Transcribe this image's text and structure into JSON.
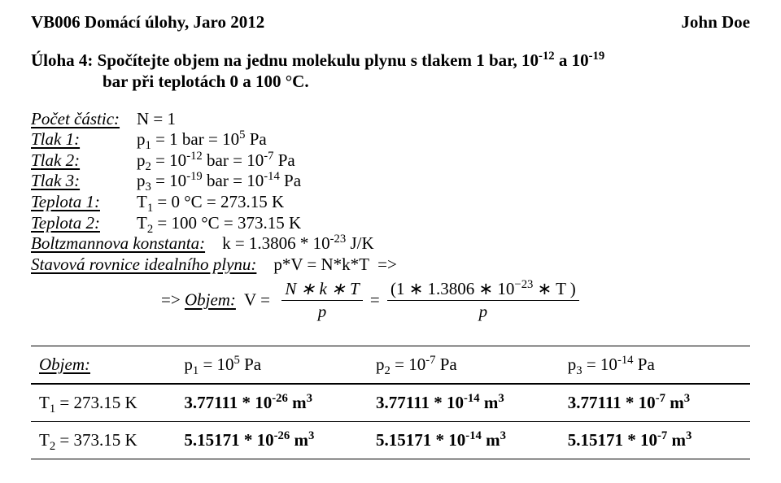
{
  "header": {
    "left": "VB006 Domácí úlohy, Jaro 2012",
    "right": "John Doe"
  },
  "task": {
    "line1": "Úloha 4: Spočítejte objem na jednu molekulu plynu s tlakem 1 bar, 10",
    "exp_a": "-12",
    "mid": " a 10",
    "exp_b": "-19",
    "line2": "bar při teplotách 0 a 100 °C."
  },
  "defs": {
    "particles_label": "Počet částic:",
    "particles_val": "N = 1",
    "tlak1_label": "Tlak 1:",
    "tlak1_val_pre": "p",
    "tlak1_val_sub": "1",
    "tlak1_val_mid": " = 1 bar = 10",
    "tlak1_val_exp": "5",
    "tlak1_val_post": " Pa",
    "tlak2_label": "Tlak 2:",
    "tlak2_val_pre": "p",
    "tlak2_val_sub": "2",
    "tlak2_val_mid1": " = 10",
    "tlak2_val_exp1": "-12",
    "tlak2_val_mid2": " bar = 10",
    "tlak2_val_exp2": "-7",
    "tlak2_val_post": " Pa",
    "tlak3_label": "Tlak 3:",
    "tlak3_val_pre": "p",
    "tlak3_val_sub": "3",
    "tlak3_val_mid1": " = 10",
    "tlak3_val_exp1": "-19",
    "tlak3_val_mid2": " bar = 10",
    "tlak3_val_exp2": "-14",
    "tlak3_val_post": " Pa",
    "tep1_label": "Teplota 1:",
    "tep1_val_pre": "T",
    "tep1_val_sub": "1",
    "tep1_val_post": " = 0 °C = 273.15 K",
    "tep2_label": "Teplota 2:",
    "tep2_val_pre": "T",
    "tep2_val_sub": "2",
    "tep2_val_post": " = 100 °C = 373.15 K",
    "boltz_label": "Boltzmannova konstanta:",
    "boltz_val_pre": "   k = 1.3806 * 10",
    "boltz_val_exp": "-23",
    "boltz_val_post": " J/K",
    "state_label": "Stavová rovnice idealního plynu:",
    "state_val": "   p*V = N*k*T  =>",
    "arrow_pre": " => ",
    "arrow_label": "Objem:",
    "arrow_mid": "  V = ",
    "frac1_num": "N ∗ k ∗ T",
    "frac1_den": "p",
    "eq": " = ",
    "frac2_num_pre": "(1 ∗ 1.3806 ∗ 10",
    "frac2_num_exp": "−23",
    "frac2_num_post": " ∗ T )",
    "frac2_den": "p"
  },
  "table": {
    "r0": {
      "c0": "Objem:",
      "c1_pre": "p",
      "c1_sub": "1",
      "c1_mid": " = 10",
      "c1_exp": "5",
      "c1_post": " Pa",
      "c2_pre": "p",
      "c2_sub": "2",
      "c2_mid": " = 10",
      "c2_exp": "-7",
      "c2_post": " Pa",
      "c3_pre": "p",
      "c3_sub": "3",
      "c3_mid": " = 10",
      "c3_exp": "-14",
      "c3_post": " Pa"
    },
    "r1": {
      "c0_pre": "T",
      "c0_sub": "1",
      "c0_post": " = 273.15 K",
      "c1_pre": "3.77111 * 10",
      "c1_exp": "-26",
      "c1_post": " m",
      "c1_exp2": "3",
      "c2_pre": "3.77111 * 10",
      "c2_exp": "-14",
      "c2_post": " m",
      "c2_exp2": "3",
      "c3_pre": "3.77111 * 10",
      "c3_exp": "-7",
      "c3_post": " m",
      "c3_exp2": "3"
    },
    "r2": {
      "c0_pre": "T",
      "c0_sub": "2",
      "c0_post": " = 373.15 K",
      "c1_pre": "5.15171 * 10",
      "c1_exp": "-26",
      "c1_post": " m",
      "c1_exp2": "3",
      "c2_pre": "5.15171 * 10",
      "c2_exp": "-14",
      "c2_post": " m",
      "c2_exp2": "3",
      "c3_pre": "5.15171 * 10",
      "c3_exp": "-7",
      "c3_post": " m",
      "c3_exp2": "3"
    }
  }
}
